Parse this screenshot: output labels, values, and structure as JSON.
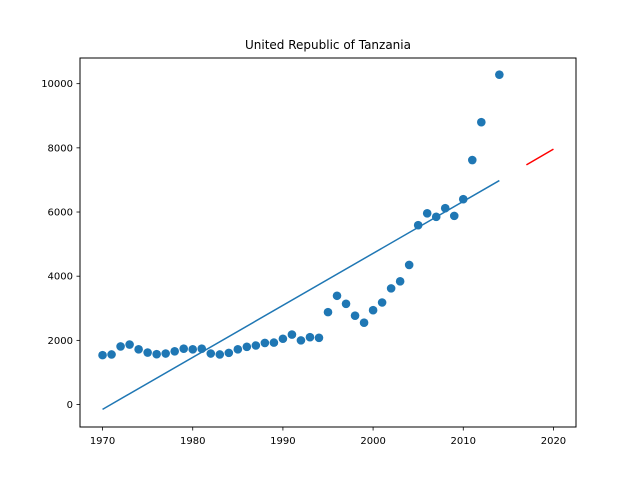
{
  "chart_data": {
    "type": "scatter",
    "title": "United Republic of Tanzania",
    "xlabel": "",
    "ylabel": "",
    "xlim": [
      1967.5,
      2022.5
    ],
    "ylim": [
      -700,
      10800
    ],
    "xticks": [
      1970,
      1980,
      1990,
      2000,
      2010,
      2020
    ],
    "yticks": [
      0,
      2000,
      4000,
      6000,
      8000,
      10000
    ],
    "grid": false,
    "colors": {
      "points": "#1f77b4",
      "fit": "#1f77b4",
      "projection": "#ff0000"
    },
    "points": {
      "x": [
        1970,
        1971,
        1972,
        1973,
        1974,
        1975,
        1976,
        1977,
        1978,
        1979,
        1980,
        1981,
        1982,
        1983,
        1984,
        1985,
        1986,
        1987,
        1988,
        1989,
        1990,
        1991,
        1992,
        1993,
        1994,
        1995,
        1996,
        1997,
        1998,
        1999,
        2000,
        2001,
        2002,
        2003,
        2004,
        2005,
        2006,
        2007,
        2008,
        2009,
        2010,
        2011,
        2012,
        2014
      ],
      "y": [
        1540,
        1560,
        1810,
        1870,
        1720,
        1620,
        1570,
        1590,
        1660,
        1740,
        1720,
        1740,
        1590,
        1560,
        1610,
        1720,
        1800,
        1840,
        1920,
        1930,
        2050,
        2180,
        2000,
        2100,
        2080,
        2880,
        3390,
        3140,
        2770,
        2550,
        2940,
        3180,
        3620,
        3840,
        4350,
        5590,
        5960,
        5850,
        6120,
        5880,
        6400,
        7620,
        8800,
        10280
      ]
    },
    "fit_line": {
      "x": [
        1970,
        2014
      ],
      "y": [
        -150,
        6980
      ]
    },
    "projection_line": {
      "x": [
        2017,
        2020
      ],
      "y": [
        7470,
        7960
      ]
    }
  }
}
